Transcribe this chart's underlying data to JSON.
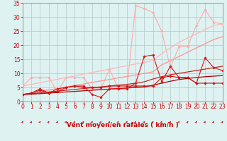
{
  "x": [
    0,
    1,
    2,
    3,
    4,
    5,
    6,
    7,
    8,
    9,
    10,
    11,
    12,
    13,
    14,
    15,
    16,
    17,
    18,
    19,
    20,
    21,
    22,
    23
  ],
  "series": [
    {
      "name": "line1_light_pink_noisy",
      "color": "#ffaaaa",
      "linewidth": 0.8,
      "marker": "D",
      "markersize": 1.8,
      "y": [
        5.5,
        8.5,
        8.5,
        8.5,
        3.5,
        8.5,
        8.5,
        8.5,
        4.5,
        4.5,
        11.5,
        4.5,
        5.0,
        34.0,
        33.0,
        31.5,
        25.0,
        12.0,
        19.5,
        19.5,
        27.0,
        32.5,
        28.0,
        27.5
      ]
    },
    {
      "name": "line2_light_pink_trend_upper",
      "color": "#ffbbbb",
      "linewidth": 1.0,
      "marker": null,
      "markersize": 0,
      "y": [
        5.5,
        6.1,
        6.7,
        7.3,
        7.9,
        8.5,
        9.1,
        9.7,
        10.3,
        10.9,
        11.5,
        12.1,
        12.7,
        13.3,
        13.9,
        14.5,
        17.0,
        19.0,
        21.0,
        22.5,
        24.0,
        25.5,
        27.0,
        27.5
      ]
    },
    {
      "name": "line3_medium_pink_trend_lower",
      "color": "#ff9999",
      "linewidth": 1.0,
      "marker": null,
      "markersize": 0,
      "y": [
        2.5,
        3.0,
        3.6,
        4.1,
        4.6,
        5.2,
        5.7,
        6.2,
        6.8,
        7.3,
        7.8,
        8.4,
        8.9,
        9.4,
        10.0,
        10.5,
        13.0,
        14.5,
        16.0,
        17.5,
        19.0,
        20.5,
        22.0,
        23.0
      ]
    },
    {
      "name": "line4_dark_red_trend_upper",
      "color": "#cc2222",
      "linewidth": 0.9,
      "marker": null,
      "markersize": 0,
      "y": [
        2.5,
        2.8,
        3.1,
        3.4,
        3.7,
        4.0,
        4.3,
        4.6,
        4.9,
        5.2,
        5.5,
        5.8,
        6.1,
        6.5,
        7.0,
        8.0,
        8.8,
        9.5,
        10.0,
        10.5,
        11.0,
        11.5,
        12.0,
        12.5
      ]
    },
    {
      "name": "line5_dark_red_trend_lower",
      "color": "#aa0000",
      "linewidth": 0.9,
      "marker": null,
      "markersize": 0,
      "y": [
        2.5,
        2.6,
        2.8,
        3.0,
        3.2,
        3.4,
        3.6,
        3.8,
        4.0,
        4.2,
        4.4,
        4.6,
        4.8,
        5.0,
        5.2,
        5.8,
        6.5,
        7.2,
        7.8,
        8.2,
        8.5,
        8.8,
        9.0,
        9.2
      ]
    },
    {
      "name": "line6_dark_red_noisy",
      "color": "#dd1111",
      "linewidth": 0.8,
      "marker": "D",
      "markersize": 1.8,
      "y": [
        2.5,
        3.0,
        4.5,
        3.0,
        4.5,
        5.0,
        5.5,
        5.5,
        2.5,
        1.5,
        4.5,
        4.5,
        4.5,
        6.5,
        16.0,
        16.5,
        7.0,
        12.5,
        8.5,
        8.5,
        6.5,
        15.5,
        12.0,
        11.0
      ]
    },
    {
      "name": "line7_dark_red_flat",
      "color": "#cc1111",
      "linewidth": 0.8,
      "marker": "D",
      "markersize": 1.8,
      "y": [
        2.5,
        3.0,
        4.0,
        3.0,
        3.5,
        5.0,
        5.5,
        5.0,
        5.0,
        5.0,
        5.5,
        5.5,
        5.5,
        5.5,
        5.5,
        5.5,
        8.5,
        9.0,
        8.5,
        8.5,
        6.5,
        6.5,
        6.5,
        6.5
      ]
    }
  ],
  "xlabel": "Vent moyen/en rafales ( km/h )",
  "xlim": [
    0,
    23
  ],
  "ylim": [
    0,
    35
  ],
  "yticks": [
    0,
    5,
    10,
    15,
    20,
    25,
    30,
    35
  ],
  "xticks": [
    0,
    1,
    2,
    3,
    4,
    5,
    6,
    7,
    8,
    9,
    10,
    11,
    12,
    13,
    14,
    15,
    16,
    17,
    18,
    19,
    20,
    21,
    22,
    23
  ],
  "bg_color": "#dff2f2",
  "grid_color": "#b0c8c8",
  "text_color": "#cc0000",
  "arrow_color": "#cc2222",
  "tick_fontsize": 5.5,
  "label_fontsize": 6.5
}
